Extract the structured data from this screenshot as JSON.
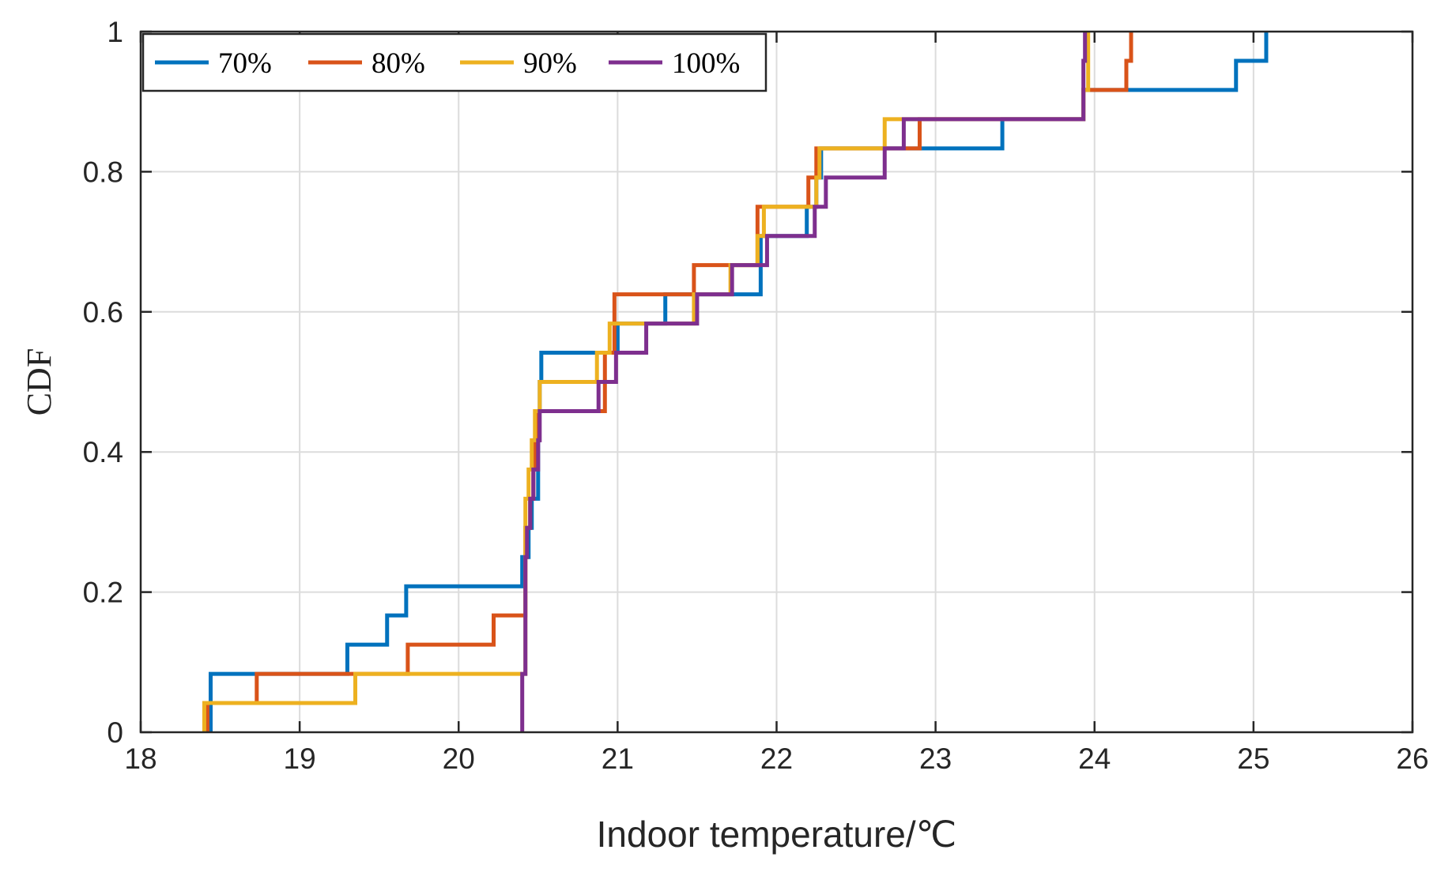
{
  "chart_data": {
    "type": "line",
    "step": true,
    "title": "",
    "xlabel": "Indoor temperature/℃",
    "ylabel": "CDF",
    "xlim": [
      18,
      26
    ],
    "ylim": [
      0,
      1
    ],
    "xticks": [
      18,
      19,
      20,
      21,
      22,
      23,
      24,
      25,
      26
    ],
    "yticks": [
      0,
      0.2,
      0.4,
      0.6,
      0.8,
      1
    ],
    "ytick_labels": [
      "0",
      "0.2",
      "0.4",
      "0.6",
      "0.8",
      "1"
    ],
    "grid": true,
    "legend_position": "top-left",
    "series": [
      {
        "name": "70%",
        "color": "#0072BD",
        "x": [
          18.44,
          19.3,
          19.55,
          19.67,
          20.4,
          20.44,
          20.46,
          20.5,
          20.51,
          20.52,
          21.0,
          21.3,
          21.9,
          22.19,
          22.25,
          22.28,
          23.42,
          23.93,
          24.89,
          25.08
        ],
        "y": [
          0.0833,
          0.125,
          0.1667,
          0.2083,
          0.25,
          0.2917,
          0.3333,
          0.4583,
          0.5,
          0.5417,
          0.5833,
          0.625,
          0.7083,
          0.75,
          0.7917,
          0.8333,
          0.875,
          0.9167,
          0.9583,
          1.0
        ]
      },
      {
        "name": "80%",
        "color": "#D95319",
        "x": [
          18.42,
          18.73,
          19.68,
          20.22,
          20.42,
          20.45,
          20.47,
          20.48,
          20.5,
          20.92,
          20.98,
          21.48,
          21.88,
          22.2,
          22.25,
          22.9,
          23.93,
          24.2,
          24.23
        ],
        "y": [
          0.0417,
          0.0833,
          0.125,
          0.1667,
          0.2917,
          0.3333,
          0.375,
          0.4167,
          0.4583,
          0.5417,
          0.625,
          0.6667,
          0.75,
          0.7917,
          0.8333,
          0.875,
          0.9167,
          0.9583,
          1.0
        ]
      },
      {
        "name": "90%",
        "color": "#EDB120",
        "x": [
          18.4,
          19.35,
          20.42,
          20.44,
          20.46,
          20.48,
          20.51,
          20.87,
          20.95,
          21.48,
          21.71,
          21.88,
          21.92,
          22.25,
          22.27,
          22.68,
          23.93,
          23.96
        ],
        "y": [
          0.0417,
          0.0833,
          0.3333,
          0.375,
          0.4167,
          0.4583,
          0.5,
          0.5417,
          0.5833,
          0.625,
          0.6667,
          0.7083,
          0.75,
          0.7917,
          0.8333,
          0.875,
          0.9167,
          1.0
        ]
      },
      {
        "name": "100%",
        "color": "#7E2F8E",
        "x": [
          20.4,
          20.42,
          20.43,
          20.45,
          20.47,
          20.5,
          20.51,
          20.88,
          20.99,
          21.18,
          21.5,
          21.72,
          21.94,
          22.24,
          22.31,
          22.68,
          22.8,
          23.93,
          23.94
        ],
        "y": [
          0.0833,
          0.25,
          0.2917,
          0.3333,
          0.375,
          0.4167,
          0.4583,
          0.5,
          0.5417,
          0.5833,
          0.625,
          0.6667,
          0.7083,
          0.75,
          0.7917,
          0.8333,
          0.875,
          0.9583,
          1.0
        ]
      }
    ]
  }
}
